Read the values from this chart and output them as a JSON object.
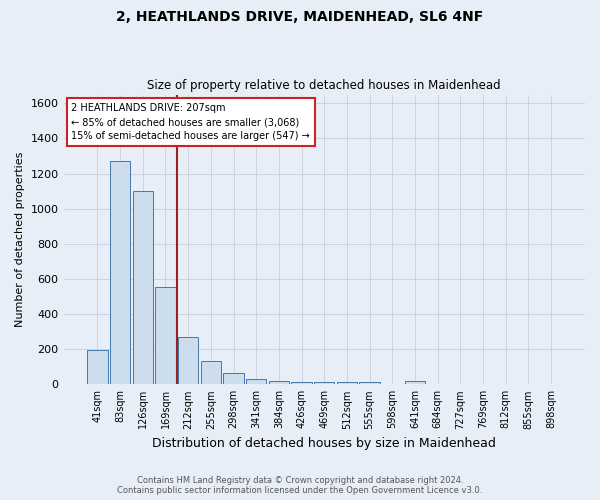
{
  "title": "2, HEATHLANDS DRIVE, MAIDENHEAD, SL6 4NF",
  "subtitle": "Size of property relative to detached houses in Maidenhead",
  "xlabel": "Distribution of detached houses by size in Maidenhead",
  "ylabel": "Number of detached properties",
  "footer_line1": "Contains HM Land Registry data © Crown copyright and database right 2024.",
  "footer_line2": "Contains public sector information licensed under the Open Government Licence v3.0.",
  "bin_labels": [
    "41sqm",
    "83sqm",
    "126sqm",
    "169sqm",
    "212sqm",
    "255sqm",
    "298sqm",
    "341sqm",
    "384sqm",
    "426sqm",
    "469sqm",
    "512sqm",
    "555sqm",
    "598sqm",
    "641sqm",
    "684sqm",
    "727sqm",
    "769sqm",
    "812sqm",
    "855sqm",
    "898sqm"
  ],
  "bar_values": [
    197,
    1270,
    1100,
    555,
    270,
    135,
    62,
    33,
    18,
    12,
    12,
    12,
    12,
    0,
    18,
    0,
    0,
    0,
    0,
    0,
    0
  ],
  "bar_color": "#ccdded",
  "bar_edge_color": "#4477aa",
  "background_color": "#e8eef8",
  "grid_color": "#ccccdd",
  "ylim": [
    0,
    1650
  ],
  "yticks": [
    0,
    200,
    400,
    600,
    800,
    1000,
    1200,
    1400,
    1600
  ],
  "vline_x_index": 3.5,
  "vline_color": "#992222",
  "annotation_text": "2 HEATHLANDS DRIVE: 207sqm\n← 85% of detached houses are smaller (3,068)\n15% of semi-detached houses are larger (547) →",
  "annotation_box_color": "#ffffff",
  "annotation_border_color": "#cc2222",
  "annotation_fontsize": 7.0,
  "title_fontsize": 10,
  "subtitle_fontsize": 8.5,
  "ylabel_fontsize": 8,
  "xlabel_fontsize": 9,
  "tick_fontsize": 7,
  "ytick_fontsize": 8,
  "footer_fontsize": 6.0,
  "footer_color": "#555555"
}
